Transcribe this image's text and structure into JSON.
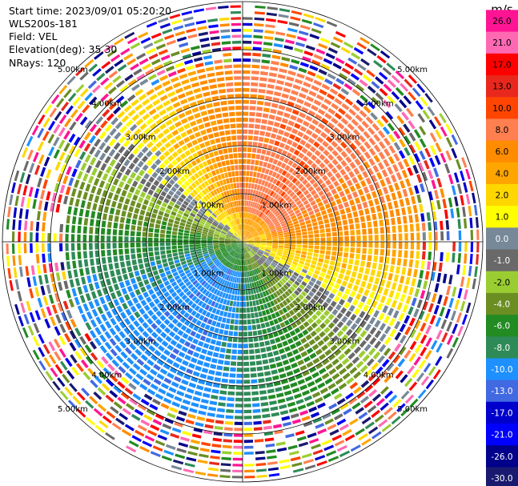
{
  "header": {
    "start_time": "Start time: 2023/09/01 05:20:20",
    "station": "WLS200s-181",
    "field": "Field: VEL",
    "elevation": "Elevation(deg): 35.30",
    "nrays": "NRays: 120"
  },
  "chart_data": {
    "type": "heatmap",
    "projection": "polar-ppi",
    "n_rays": 120,
    "max_range_km": 5.0,
    "range_ring_labels": [
      "1.00km",
      "2.00km",
      "3.00km",
      "4.00km",
      "5.00km"
    ],
    "range_rings_km": [
      1,
      2,
      3,
      4,
      5
    ],
    "colorbar": {
      "unit": "m/s",
      "ticks": [
        "26.0",
        "21.0",
        "17.0",
        "13.0",
        "10.0",
        "8.0",
        "6.0",
        "4.0",
        "2.0",
        "1.0",
        "0.0",
        "-1.0",
        "-2.0",
        "-4.0",
        "-6.0",
        "-8.0",
        "-10.0",
        "-13.0",
        "-17.0",
        "-21.0",
        "-26.0",
        "-30.0"
      ],
      "colors": [
        "#ff1493",
        "#ff69b4",
        "#ff0000",
        "#e8281c",
        "#ff4500",
        "#ff7f50",
        "#ff8c00",
        "#ffa500",
        "#ffd700",
        "#ffff00",
        "#778899",
        "#696969",
        "#9acd32",
        "#6b8e23",
        "#228b22",
        "#2e8b57",
        "#1e90ff",
        "#4169e1",
        "#0000cd",
        "#0000ff",
        "#00008b",
        "#191970"
      ]
    },
    "field_pattern": {
      "description_values_ms": {
        "north_east_core": 8,
        "south_west_core": -8,
        "zero_line_axis": "west-northwest to east-southeast"
      }
    }
  }
}
